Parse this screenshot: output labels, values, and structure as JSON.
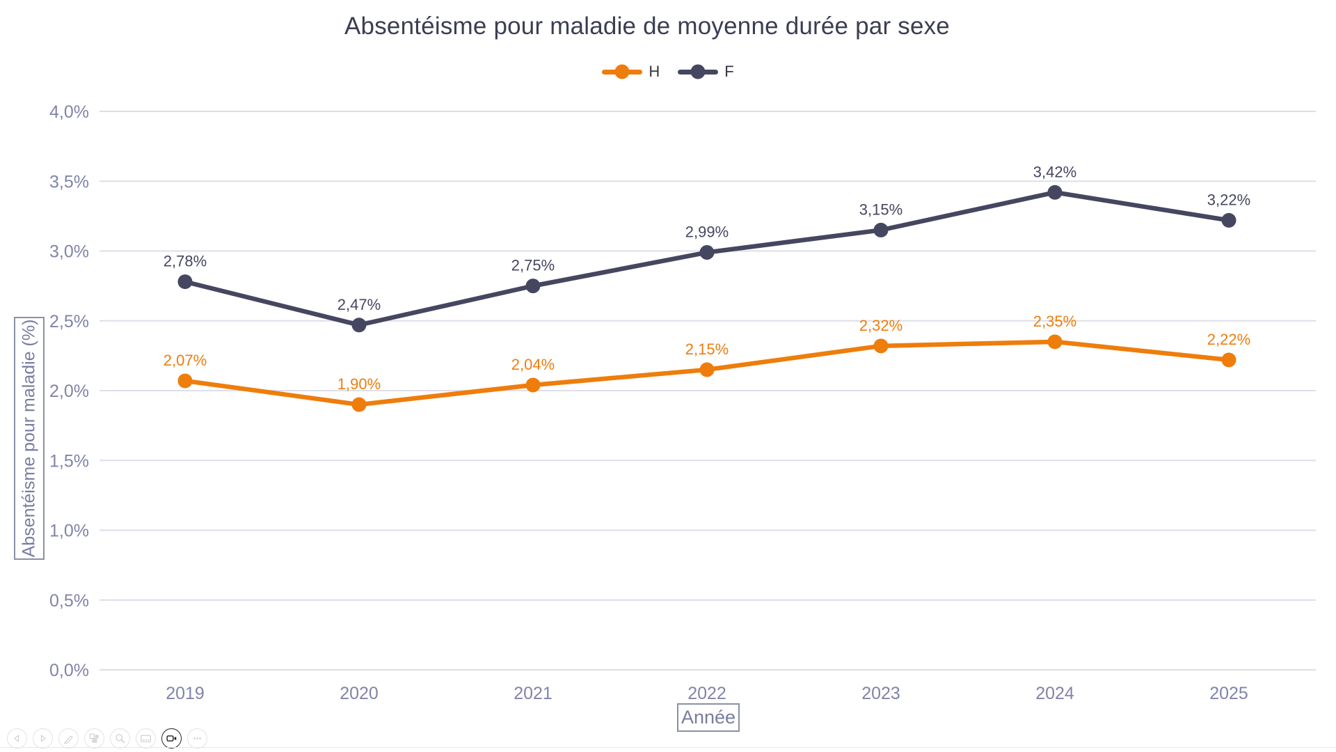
{
  "slide": {
    "title": "Absentéisme pour maladie de moyenne durée par sexe"
  },
  "legend": {
    "items": [
      {
        "label": "H",
        "color": "#EE7D0C"
      },
      {
        "label": "F",
        "color": "#454660"
      }
    ]
  },
  "axes": {
    "y_title": "Absentéisme pour maladie (%)",
    "x_title": "Année"
  },
  "chart_data": {
    "type": "line",
    "title": "Absentéisme pour maladie de moyenne durée par sexe",
    "xlabel": "Année",
    "ylabel": "Absentéisme pour maladie (%)",
    "categories": [
      "2019",
      "2020",
      "2021",
      "2022",
      "2023",
      "2024",
      "2025"
    ],
    "series": [
      {
        "name": "H",
        "color": "#EE7D0C",
        "values": [
          2.07,
          1.9,
          2.04,
          2.15,
          2.32,
          2.35,
          2.22
        ],
        "point_labels": [
          "2,07%",
          "1,90%",
          "2,04%",
          "2,15%",
          "2,32%",
          "2,35%",
          "2,22%"
        ]
      },
      {
        "name": "F",
        "color": "#454660",
        "values": [
          2.78,
          2.47,
          2.75,
          2.99,
          3.15,
          3.42,
          3.22
        ],
        "point_labels": [
          "2,78%",
          "2,47%",
          "2,75%",
          "2,99%",
          "3,15%",
          "3,42%",
          "3,22%"
        ]
      }
    ],
    "ylim": [
      0,
      4
    ],
    "yticks": [
      {
        "value": 0.0,
        "label": "0,0%"
      },
      {
        "value": 0.5,
        "label": "0,5%"
      },
      {
        "value": 1.0,
        "label": "1,0%"
      },
      {
        "value": 1.5,
        "label": "1,5%"
      },
      {
        "value": 2.0,
        "label": "2,0%"
      },
      {
        "value": 2.5,
        "label": "2,5%"
      },
      {
        "value": 3.0,
        "label": "3,0%"
      },
      {
        "value": 3.5,
        "label": "3,5%"
      },
      {
        "value": 4.0,
        "label": "4,0%"
      }
    ],
    "grid": true,
    "legend_position": "top",
    "data_labels": true
  },
  "toolbar": {
    "buttons": [
      {
        "name": "previous-slide"
      },
      {
        "name": "next-slide"
      },
      {
        "name": "pen-tools"
      },
      {
        "name": "see-all-slides"
      },
      {
        "name": "zoom-slide"
      },
      {
        "name": "subtitles"
      },
      {
        "name": "camera",
        "active": true
      },
      {
        "name": "more-options"
      }
    ]
  },
  "colors": {
    "title": "#3B3E52",
    "tick_label": "#8084A8",
    "gridline": "#DEDEE8",
    "axis_box_border": "#8B8FA6",
    "axis_box_text": "#787CA0",
    "toolbar_glyph": "#CBCBCB",
    "toolbar_active_glyph": "#1F1F1F"
  }
}
